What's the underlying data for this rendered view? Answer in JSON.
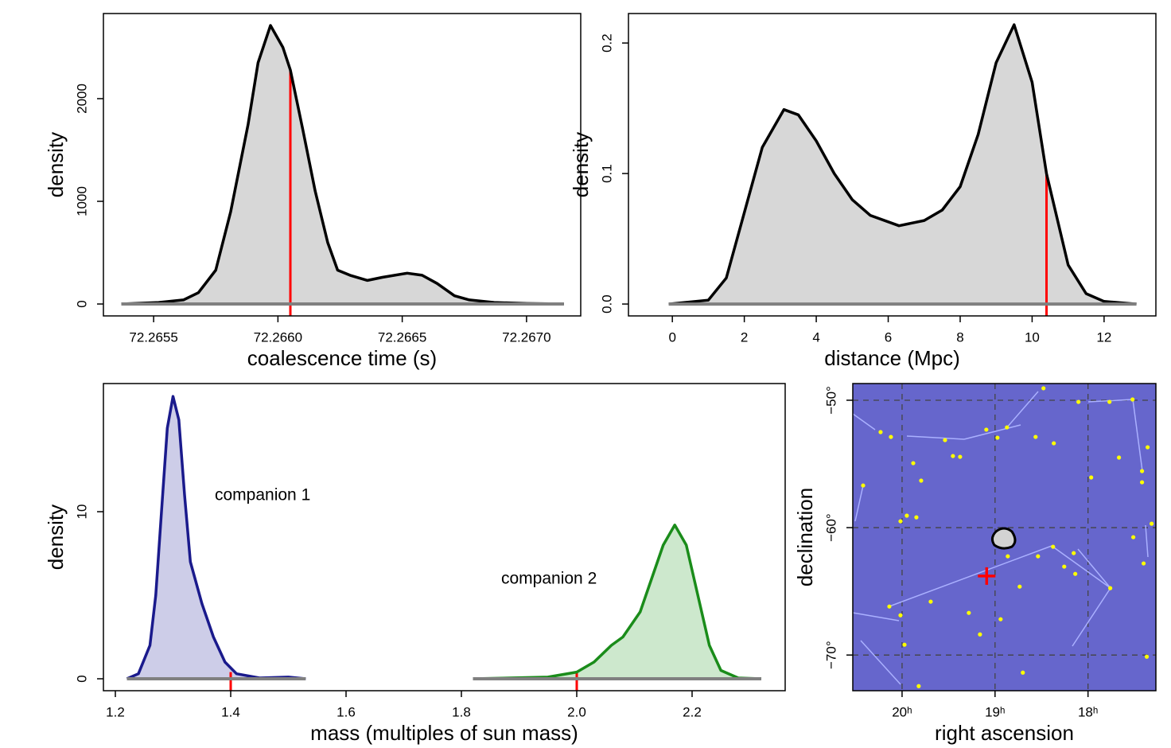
{
  "chart_data": [
    {
      "type": "density",
      "xlabel": "coalescence time (s)",
      "ylabel": "density",
      "xlim": [
        72.265298,
        72.267218
      ],
      "ylim": [
        -116,
        2829
      ],
      "xticks": [
        72.2655,
        {
          "value": 72.266,
          "label": "72.2660"
        },
        72.2665,
        {
          "value": 72.267,
          "label": "72.2670"
        }
      ],
      "yticks": [
        0,
        1000,
        2000
      ],
      "series": [
        {
          "color": "#000000",
          "fill": "#d3d3d3",
          "x": [
            72.26537,
            72.26552,
            72.26562,
            72.26568,
            72.26575,
            72.26581,
            72.26588,
            72.26592,
            72.26597,
            72.26602,
            72.26605,
            72.2661,
            72.26615,
            72.2662,
            72.26624,
            72.26629,
            72.26636,
            72.26642,
            72.26652,
            72.26658,
            72.26664,
            72.26671,
            72.26677,
            72.26687,
            72.267,
            72.26715
          ],
          "values": [
            0,
            15,
            40,
            110,
            330,
            900,
            1750,
            2350,
            2713,
            2500,
            2279,
            1700,
            1100,
            600,
            330,
            280,
            230,
            260,
            300,
            280,
            200,
            80,
            40,
            15,
            5,
            0
          ],
          "reference": {
            "x": 72.26605,
            "y": 2279,
            "color": "#ff0000"
          }
        }
      ]
    },
    {
      "type": "density",
      "xlabel": "distance (Mpc)",
      "ylabel": "density",
      "xlim": [
        -1.22,
        13.44
      ],
      "ylim": [
        -0.0091,
        0.2226
      ],
      "xticks": [
        0,
        2,
        4,
        6,
        8,
        10,
        12
      ],
      "yticks": [
        {
          "value": 0,
          "label": "0.0"
        },
        0.1,
        0.2
      ],
      "series": [
        {
          "color": "#000000",
          "fill": "#d3d3d3",
          "x": [
            -0.1,
            1.0,
            1.5,
            2.0,
            2.5,
            3.1,
            3.5,
            4.0,
            4.5,
            5.0,
            5.5,
            6.3,
            7.0,
            7.5,
            8.0,
            8.5,
            9.0,
            9.5,
            10.0,
            10.4,
            11.0,
            11.5,
            12.0,
            12.9
          ],
          "values": [
            0,
            0.003,
            0.02,
            0.07,
            0.12,
            0.149,
            0.145,
            0.125,
            0.1,
            0.08,
            0.068,
            0.06,
            0.064,
            0.072,
            0.09,
            0.13,
            0.185,
            0.214,
            0.17,
            0.1,
            0.03,
            0.008,
            0.002,
            0
          ],
          "reference": {
            "x": 10.4,
            "y": 0.1,
            "color": "#ff0000"
          }
        }
      ]
    },
    {
      "type": "density",
      "xlabel": "mass (multiples of sun mass)",
      "ylabel": "density",
      "xlim": [
        1.1793,
        2.3614
      ],
      "ylim": [
        -0.714,
        17.67
      ],
      "xticks": [
        1.2,
        1.4,
        1.6,
        1.8,
        {
          "value": 2,
          "label": "2.0"
        },
        2.2
      ],
      "yticks": [
        0,
        10
      ],
      "series": [
        {
          "name": "companion 1",
          "color": "#1a1a8c",
          "fill": "#c8c8e6",
          "x": [
            1.22,
            1.24,
            1.26,
            1.27,
            1.28,
            1.29,
            1.3,
            1.31,
            1.32,
            1.33,
            1.35,
            1.37,
            1.39,
            1.41,
            1.45,
            1.5,
            1.53
          ],
          "values": [
            0,
            0.3,
            2,
            5,
            10,
            15,
            16.9,
            15.5,
            11,
            7,
            4.5,
            2.5,
            1,
            0.3,
            0.05,
            0.1,
            0
          ],
          "reference": {
            "x": 1.4,
            "y": 0.4,
            "color": "#ff0000"
          }
        },
        {
          "name": "companion 2",
          "color": "#1a8c1a",
          "fill": "#c8e6c8",
          "x": [
            1.82,
            1.95,
            2.0,
            2.03,
            2.06,
            2.08,
            2.11,
            2.13,
            2.15,
            2.17,
            2.19,
            2.21,
            2.23,
            2.25,
            2.28,
            2.32
          ],
          "values": [
            0,
            0.1,
            0.4,
            1,
            2,
            2.5,
            4,
            6,
            8,
            9.2,
            8,
            5,
            2,
            0.5,
            0.05,
            0
          ],
          "reference": {
            "x": 2.0,
            "y": 0.4,
            "color": "#ff0000"
          }
        }
      ]
    },
    {
      "type": "skymap",
      "xlabel": "right ascension",
      "ylabel": "declination",
      "xlim": [
        20.53,
        17.27
      ],
      "ylim": [
        -72.8,
        -48.69
      ],
      "grid": true,
      "background": "#6666cc",
      "xticks": [
        {
          "value": 20,
          "label": "20ʰ"
        },
        {
          "value": 19,
          "label": "19ʰ"
        },
        {
          "value": 18,
          "label": "18ʰ"
        }
      ],
      "yticks": [
        {
          "value": -50,
          "label": "−50°"
        },
        {
          "value": -60,
          "label": "−60°"
        },
        {
          "value": -70,
          "label": "−70°"
        }
      ],
      "stars": {
        "color": "#ffff00",
        "ra": [
          20.419,
          20.231,
          20.12,
          19.88,
          19.795,
          19.538,
          19.453,
          19.376,
          19.094,
          18.974,
          18.872,
          18.479,
          18.564,
          18.368,
          18.103,
          17.769,
          17.966,
          17.667,
          17.521,
          17.419,
          17.419,
          17.359,
          17.513,
          17.402,
          17.316,
          17.368,
          20.017,
          19.949,
          19.846,
          20.137,
          20.017,
          19.974,
          19.692,
          19.821,
          18.863,
          18.735,
          18.538,
          18.376,
          18.154,
          18.256,
          18.137,
          17.761,
          19.282,
          19.162,
          18.94,
          18.701
        ],
        "dec": [
          -56.69,
          -52.5,
          -52.88,
          -54.94,
          -56.31,
          -53.13,
          -54.38,
          -54.44,
          -52.31,
          -52.94,
          -52.13,
          -49.06,
          -52.88,
          -53.38,
          -50.13,
          -50.13,
          -56.06,
          -54.5,
          -49.94,
          -55.56,
          -56.44,
          -53.69,
          -60.75,
          -62.81,
          -59.69,
          -70.13,
          -59.5,
          -59.06,
          -59.19,
          -66.19,
          -66.88,
          -69.19,
          -65.81,
          -72.44,
          -62.25,
          -64.63,
          -62.25,
          -61.5,
          -62.0,
          -63.06,
          -63.63,
          -64.75,
          -66.69,
          -68.38,
          -67.19,
          -71.38
        ]
      },
      "true_position": {
        "ra": 19.09,
        "dec": -63.8,
        "color": "#ff0000"
      }
    }
  ]
}
